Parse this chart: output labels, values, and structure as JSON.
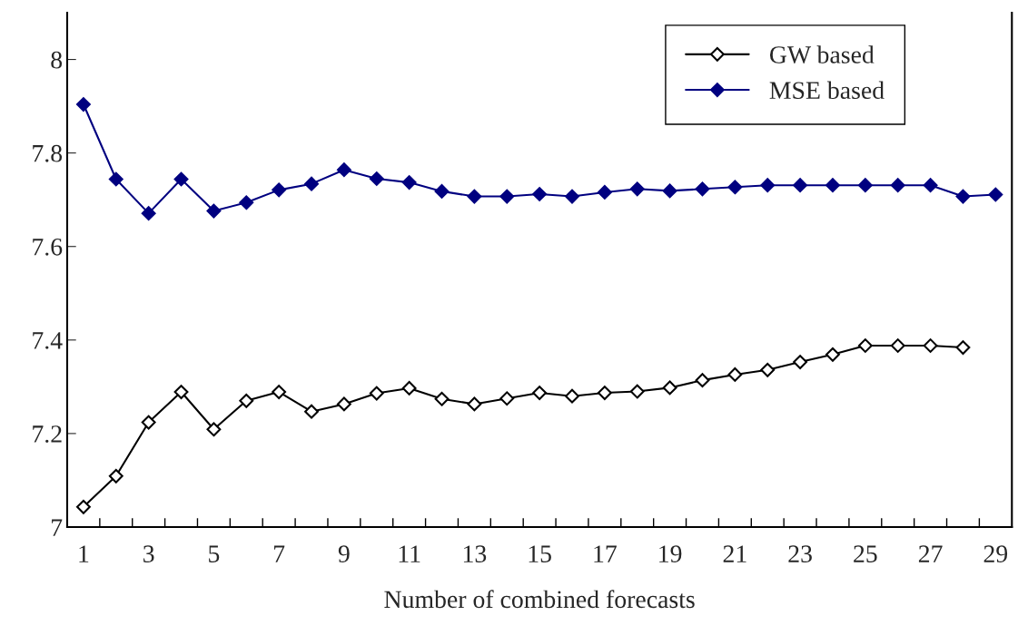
{
  "chart_data": {
    "type": "line",
    "xlabel": "Number of combined forecasts",
    "categories": [
      "1",
      null,
      "3",
      null,
      "5",
      null,
      "7",
      null,
      "9",
      null,
      "11",
      null,
      "13",
      null,
      "15",
      null,
      "17",
      null,
      "19",
      null,
      "21",
      null,
      "23",
      null,
      "25",
      null,
      "27",
      null,
      "29"
    ],
    "series": [
      {
        "name": "GW based",
        "color": "#000000",
        "marker": "diamond",
        "values": [
          7.043,
          7.109,
          7.224,
          7.289,
          7.209,
          7.27,
          7.289,
          7.247,
          7.263,
          7.286,
          7.297,
          7.274,
          7.263,
          7.275,
          7.287,
          7.28,
          7.287,
          7.29,
          7.298,
          7.314,
          7.326,
          7.336,
          7.353,
          7.369,
          7.388,
          7.388,
          7.388,
          7.384,
          null
        ]
      },
      {
        "name": "MSE based",
        "color": "#000080",
        "marker": "diamond",
        "values": [
          7.904,
          7.744,
          7.671,
          7.744,
          7.676,
          7.694,
          7.721,
          7.734,
          7.764,
          7.745,
          7.737,
          7.718,
          7.707,
          7.707,
          7.712,
          7.707,
          7.716,
          7.723,
          7.719,
          7.723,
          7.727,
          7.731,
          7.731,
          7.731,
          7.731,
          7.731,
          7.731,
          7.707,
          7.711
        ]
      }
    ],
    "ylim": [
      7,
      8.1
    ],
    "yticks": [
      7,
      7.2,
      7.4,
      7.6,
      7.8,
      8
    ],
    "grid": false,
    "legend": "top right",
    "line_style": "solid"
  }
}
